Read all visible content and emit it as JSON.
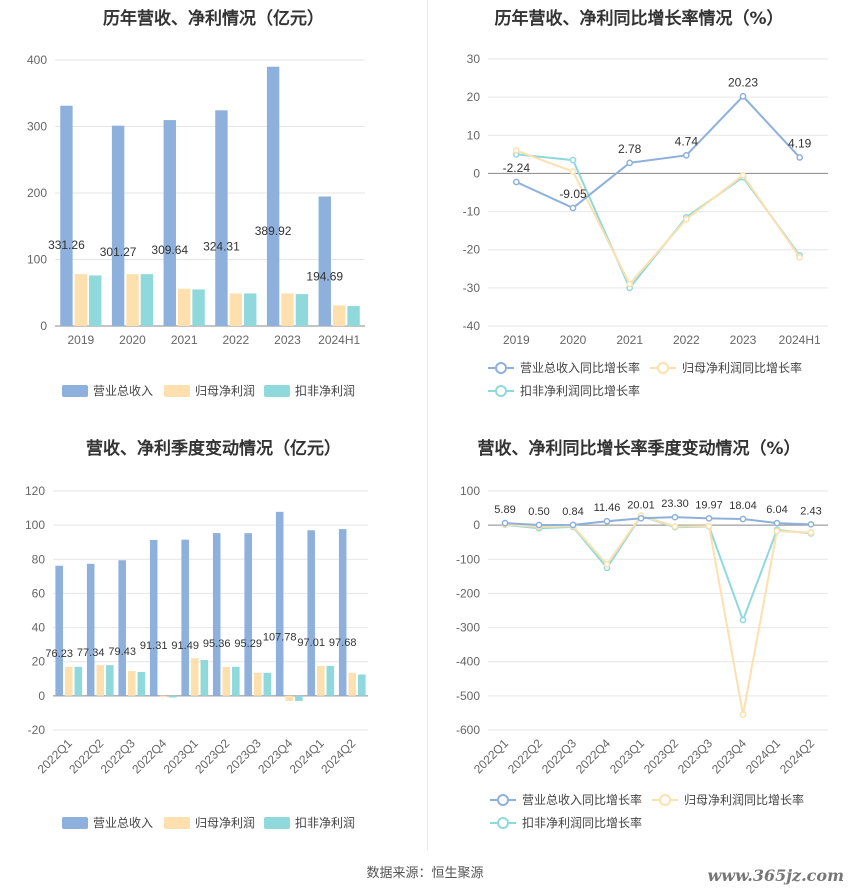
{
  "panels": {
    "p1_title": "历年营收、净利情况（亿元）",
    "p2_title": "历年营收、净利同比增长率情况（%）",
    "p3_title": "营收、净利季度变动情况（亿元）",
    "p4_title": "营收、净利同比增长率季度变动情况（%）"
  },
  "footer": {
    "source": "数据来源：恒生聚源",
    "watermark": "www.365jz.com"
  },
  "colors": {
    "revenue": "#8eb0dc",
    "parent_np": "#fde0ad",
    "deducted_np": "#8fd9dd",
    "grid": "#e6e6e6",
    "axis_text": "#666666"
  },
  "chart_data": [
    {
      "type": "bar",
      "title": "历年营收、净利情况（亿元）",
      "categories": [
        "2019",
        "2020",
        "2021",
        "2022",
        "2023",
        "2024H1"
      ],
      "ylim": [
        0,
        400
      ],
      "yticks": [
        0,
        100,
        200,
        300,
        400
      ],
      "series": [
        {
          "name": "营业总收入",
          "values": [
            331.26,
            301.27,
            309.64,
            324.31,
            389.92,
            194.69
          ],
          "labels": [
            "331.26",
            "301.27",
            "309.64",
            "324.31",
            "389.92",
            "194.69"
          ]
        },
        {
          "name": "归母净利润",
          "values": [
            78,
            78,
            56,
            49,
            49,
            31
          ]
        },
        {
          "name": "扣非净利润",
          "values": [
            76,
            78,
            55,
            49,
            48,
            30
          ]
        }
      ],
      "legend_position": "bottom"
    },
    {
      "type": "line",
      "title": "历年营收、净利同比增长率情况（%）",
      "categories": [
        "2019",
        "2020",
        "2021",
        "2022",
        "2023",
        "2024H1"
      ],
      "ylim": [
        -40,
        30
      ],
      "yticks": [
        -40,
        -30,
        -20,
        -10,
        0,
        10,
        20,
        30
      ],
      "series": [
        {
          "name": "营业总收入同比增长率",
          "values": [
            -2.24,
            -9.05,
            2.78,
            4.74,
            20.23,
            4.19
          ],
          "labels": [
            "-2.24",
            "-9.05",
            "2.78",
            "4.74",
            "20.23",
            "4.19"
          ]
        },
        {
          "name": "归母净利润同比增长率",
          "values": [
            6,
            0.5,
            -29,
            -12,
            -0.5,
            -22
          ]
        },
        {
          "name": "扣非净利润同比增长率",
          "values": [
            5,
            3.5,
            -30,
            -11.5,
            -1,
            -21.5
          ]
        }
      ],
      "legend_position": "bottom"
    },
    {
      "type": "bar",
      "title": "营收、净利季度变动情况（亿元）",
      "categories": [
        "2022Q1",
        "2022Q2",
        "2022Q3",
        "2022Q4",
        "2023Q1",
        "2023Q2",
        "2023Q3",
        "2023Q4",
        "2024Q1",
        "2024Q2"
      ],
      "ylim": [
        -20,
        120
      ],
      "yticks": [
        -20,
        0,
        20,
        40,
        60,
        80,
        100,
        120
      ],
      "series": [
        {
          "name": "营业总收入",
          "values": [
            76.23,
            77.34,
            79.43,
            91.31,
            91.49,
            95.36,
            95.29,
            107.78,
            97.01,
            97.68
          ],
          "labels": [
            "76.23",
            "77.34",
            "79.43",
            "91.31",
            "91.49",
            "95.36",
            "95.29",
            "107.78",
            "97.01",
            "97.68"
          ]
        },
        {
          "name": "归母净利润",
          "values": [
            17,
            18,
            14.5,
            -0.5,
            22,
            17,
            13.5,
            -3,
            17.5,
            13.5
          ]
        },
        {
          "name": "扣非净利润",
          "values": [
            17,
            18,
            14,
            -1,
            21,
            17,
            13.5,
            -3,
            17.5,
            12.5
          ]
        }
      ],
      "legend_position": "bottom"
    },
    {
      "type": "line",
      "title": "营收、净利同比增长率季度变动情况（%）",
      "categories": [
        "2022Q1",
        "2022Q2",
        "2022Q3",
        "2022Q4",
        "2023Q1",
        "2023Q2",
        "2023Q3",
        "2023Q4",
        "2024Q1",
        "2024Q2"
      ],
      "ylim": [
        -600,
        100
      ],
      "yticks": [
        -600,
        -500,
        -400,
        -300,
        -200,
        -100,
        0,
        100
      ],
      "series": [
        {
          "name": "营业总收入同比增长率",
          "values": [
            5.89,
            0.5,
            0.84,
            11.46,
            20.01,
            23.3,
            19.97,
            18.04,
            6.04,
            2.43
          ],
          "labels": [
            "5.89",
            "0.50",
            "0.84",
            "11.46",
            "20.01",
            "23.30",
            "19.97",
            "18.04",
            "6.04",
            "2.43"
          ]
        },
        {
          "name": "归母净利润同比增长率",
          "values": [
            2,
            -5,
            -3,
            -115,
            28,
            -4,
            -3,
            -555,
            -17,
            -22
          ]
        },
        {
          "name": "扣非净利润同比增长率",
          "values": [
            1,
            -9,
            -5,
            -125,
            27,
            -6,
            -4,
            -278,
            -14,
            -24
          ]
        }
      ],
      "legend_position": "bottom"
    }
  ]
}
